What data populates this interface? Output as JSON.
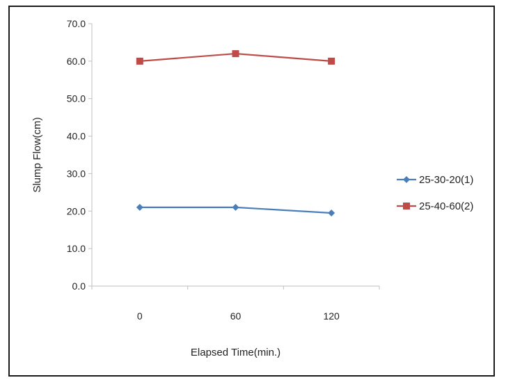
{
  "chart_data": {
    "type": "line",
    "title": "",
    "xlabel": "Elapsed Time(min.)",
    "ylabel": "Slump Flow(cm)",
    "categories": [
      "0",
      "60",
      "120"
    ],
    "ylim": [
      0,
      70
    ],
    "yticks": [
      "0.0",
      "10.0",
      "20.0",
      "30.0",
      "40.0",
      "50.0",
      "60.0",
      "70.0"
    ],
    "grid": false,
    "legend_position": "right",
    "series": [
      {
        "name": "25-30-20(1)",
        "values": [
          21.0,
          21.0,
          19.5
        ],
        "color": "#4a7ebb",
        "marker": "diamond"
      },
      {
        "name": "25-40-60(2)",
        "values": [
          60.0,
          62.0,
          60.0
        ],
        "color": "#be4b48",
        "marker": "square"
      }
    ]
  }
}
